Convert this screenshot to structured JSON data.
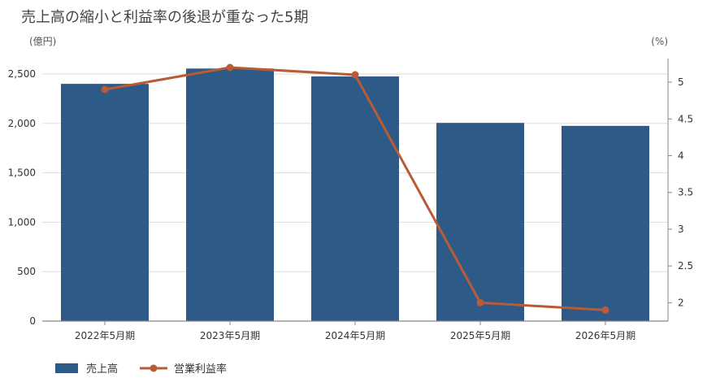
{
  "chart_data": {
    "type": "bar+line",
    "title": "売上高の縮小と利益率の後退が重なった5期",
    "y_left_unit": "(億円)",
    "y_right_unit": "(%)",
    "categories": [
      "2022年5月期",
      "2023年5月期",
      "2024年5月期",
      "2025年5月期",
      "2026年5月期"
    ],
    "series": [
      {
        "name": "売上高",
        "kind": "bar",
        "axis": "left",
        "values": [
          2400,
          2555,
          2475,
          2005,
          1975
        ],
        "color": "#2e5a87"
      },
      {
        "name": "営業利益率",
        "kind": "line",
        "axis": "right",
        "values": [
          4.9,
          5.2,
          5.1,
          2.0,
          1.9
        ],
        "color": "#b85c38"
      }
    ],
    "y_left": {
      "range": [
        0,
        2500
      ],
      "ticks": [
        0,
        500,
        1000,
        1500,
        2000,
        2500
      ],
      "tick_labels": [
        "0",
        "500",
        "1,000",
        "1,500",
        "2,000",
        "2,500"
      ]
    },
    "y_right": {
      "range": [
        1.75,
        5.2
      ],
      "ticks": [
        2,
        2.5,
        3,
        3.5,
        4,
        4.5,
        5
      ],
      "tick_labels": [
        "2",
        "2.5",
        "3",
        "3.5",
        "4",
        "4.5",
        "5"
      ]
    },
    "grid": true,
    "legend_position": "bottom-left"
  }
}
